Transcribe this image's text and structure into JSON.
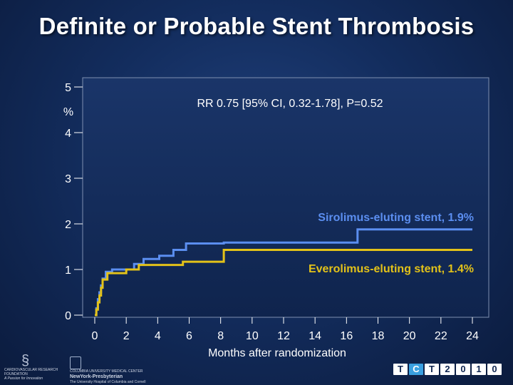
{
  "slide": {
    "title": "Definite or Probable Stent Thrombosis"
  },
  "chart_data": {
    "type": "line",
    "title": "Definite or Probable Stent Thrombosis",
    "xlabel": "Months after randomization",
    "ylabel": "%",
    "xlim": [
      0,
      24
    ],
    "ylim": [
      0,
      5
    ],
    "x_ticks": [
      "0",
      "2",
      "4",
      "6",
      "8",
      "10",
      "12",
      "14",
      "16",
      "18",
      "20",
      "22",
      "24"
    ],
    "y_ticks": [
      "0",
      "1",
      "2",
      "3",
      "4",
      "5"
    ],
    "annotation": "RR 0.75 [95% CI, 0.32-1.78], P=0.52",
    "step": true,
    "series": [
      {
        "name": "Sirolimus-eluting stent, 1.9%",
        "color": "#5b8ef0",
        "x": [
          0,
          0.1,
          0.2,
          0.3,
          0.4,
          0.5,
          0.7,
          1.1,
          2.5,
          3.1,
          4.1,
          5.0,
          5.8,
          8.2,
          16.7,
          24
        ],
        "y": [
          0.0,
          0.15,
          0.35,
          0.5,
          0.65,
          0.8,
          0.95,
          1.0,
          1.12,
          1.23,
          1.3,
          1.43,
          1.57,
          1.59,
          1.88,
          1.88
        ]
      },
      {
        "name": "Everolimus-eluting stent, 1.4%",
        "color": "#e3c219",
        "x": [
          0,
          0.1,
          0.2,
          0.3,
          0.4,
          0.5,
          0.8,
          2.0,
          2.8,
          5.6,
          8.2,
          24
        ],
        "y": [
          0.0,
          0.12,
          0.28,
          0.43,
          0.6,
          0.78,
          0.92,
          1.0,
          1.1,
          1.17,
          1.43,
          1.43
        ]
      }
    ],
    "series_label_values": [
      "Sirolimus-eluting stent, 1.9%",
      "Everolimus-eluting stent, 1.4%"
    ]
  },
  "footer": {
    "cvrf_name": "CARDIOVASCULAR RESEARCH FOUNDATION",
    "cvrf_tagline": "A Passion for Innovation",
    "cu_name": "COLUMBIA UNIVERSITY MEDICAL CENTER",
    "nyp_name": "NewYork-Presbyterian",
    "nyp_sub": "The University Hospital of Columbia and Cornell",
    "tct_letters": [
      "T",
      "C",
      "T",
      "2",
      "0",
      "1",
      "0"
    ]
  }
}
